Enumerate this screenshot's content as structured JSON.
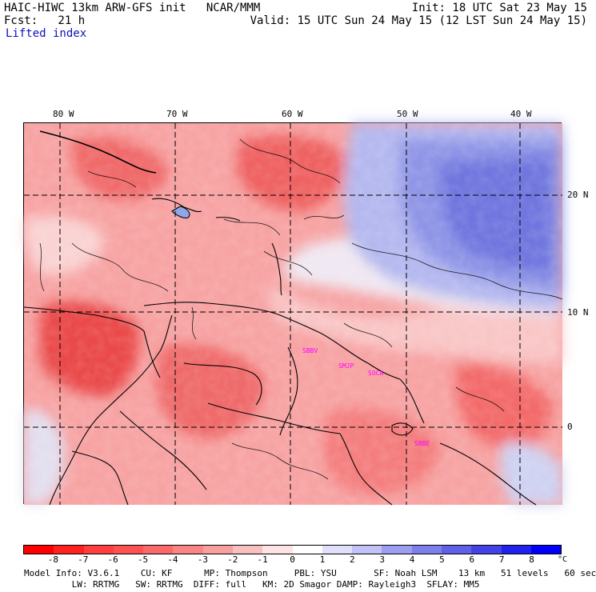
{
  "header": {
    "title_left": "HAIC-HIWC 13km ARW-GFS init   NCAR/MMM",
    "fcst_left": "Fcst:   21 h",
    "field_name": "Lifted index",
    "init_right": "Init: 18 UTC Sat 23 May 15",
    "valid_right": "Valid: 15 UTC Sun 24 May 15 (12 LST Sun 24 May 15)"
  },
  "map": {
    "longitude_labels": [
      "80 W",
      "70 W",
      "60 W",
      "50 W",
      "40 W"
    ],
    "latitude_labels": [
      "20 N",
      "10 N",
      "0"
    ],
    "stations": [
      "SBBV",
      "SMJP",
      "SOCA",
      "SBBE"
    ],
    "colors": {
      "land_outline": "#000000",
      "gridline": "#000000"
    }
  },
  "colorbar": {
    "labels": [
      "-8",
      "-7",
      "-6",
      "-5",
      "-4",
      "-3",
      "-2",
      "-1",
      "0",
      "1",
      "2",
      "3",
      "4",
      "5",
      "6",
      "7",
      "8"
    ],
    "unit": "°C",
    "colors": [
      "#ff0000",
      "#ff2020",
      "#ff3f3f",
      "#fd5252",
      "#fb6a6a",
      "#f98585",
      "#f8a0a0",
      "#f9c0c0",
      "#fde3e3",
      "#ffffff",
      "#e0e0fb",
      "#c2c2f6",
      "#9e9ef1",
      "#7f7fec",
      "#6161e8",
      "#4444e6",
      "#2222ee",
      "#0000f8"
    ]
  },
  "footer": {
    "line1": "Model Info: V3.6.1    CU: KF      MP: Thompson     PBL: YSU       SF: Noah LSM    13 km   51 levels   60 sec",
    "line2": "         LW: RRTMG   SW: RRTMG  DIFF: full   KM: 2D Smagor DAMP: Rayleigh3  SFLAY: MM5"
  }
}
